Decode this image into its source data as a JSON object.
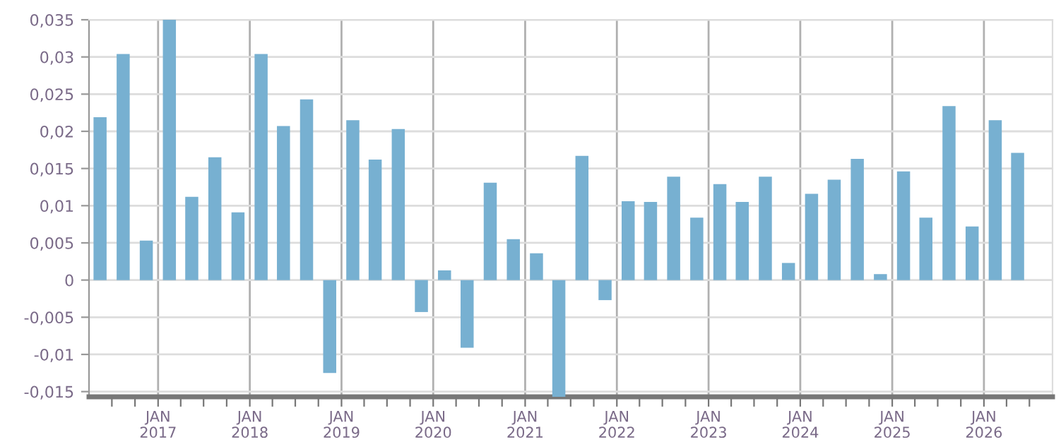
{
  "chart_data": {
    "type": "bar",
    "color": "#77b0d1",
    "x": [
      "2016-05-15",
      "2016-08-15",
      "2016-11-15",
      "2017-02-15",
      "2017-05-15",
      "2017-08-15",
      "2017-11-15",
      "2018-02-15",
      "2018-05-15",
      "2018-08-15",
      "2018-11-15",
      "2019-02-15",
      "2019-05-15",
      "2019-08-15",
      "2019-11-15",
      "2020-02-15",
      "2020-05-15",
      "2020-08-15",
      "2020-11-15",
      "2021-02-15",
      "2021-05-15",
      "2021-08-15",
      "2021-11-15",
      "2022-02-15",
      "2022-05-15",
      "2022-08-15",
      "2022-11-15",
      "2023-02-15",
      "2023-05-15",
      "2023-08-15",
      "2023-11-15",
      "2024-02-15",
      "2024-05-15",
      "2024-08-15",
      "2024-11-15",
      "2025-02-15",
      "2025-05-15",
      "2025-08-15",
      "2025-11-15",
      "2026-02-15",
      "2026-05-15"
    ],
    "values": [
      0.0219,
      0.0304,
      0.0053,
      0.035,
      0.0112,
      0.0165,
      0.0091,
      0.0304,
      0.0207,
      0.0243,
      -0.0125,
      0.0215,
      0.0162,
      0.0203,
      -0.0043,
      0.0013,
      -0.0091,
      0.0131,
      0.0055,
      0.0036,
      -0.0157,
      0.0167,
      -0.0027,
      0.0106,
      0.0105,
      0.0139,
      0.0084,
      0.0129,
      0.0105,
      0.0139,
      0.0023,
      0.0116,
      0.0135,
      0.0163,
      0.0008,
      0.0146,
      0.0084,
      0.0234,
      0.0072,
      0.0215,
      0.0171
    ],
    "xlim": [
      "2016-04-01",
      "2026-10-01"
    ],
    "xticks": [
      {
        "value": "2016-07-01",
        "label": null
      },
      {
        "value": "2016-10-01",
        "label": null
      },
      {
        "value": "2017-01-01",
        "label": "JAN\n2017"
      },
      {
        "value": "2017-04-01",
        "label": null
      },
      {
        "value": "2017-07-01",
        "label": null
      },
      {
        "value": "2017-10-01",
        "label": null
      },
      {
        "value": "2018-01-01",
        "label": "JAN\n2018"
      },
      {
        "value": "2018-04-01",
        "label": null
      },
      {
        "value": "2018-07-01",
        "label": null
      },
      {
        "value": "2018-10-01",
        "label": null
      },
      {
        "value": "2019-01-01",
        "label": "JAN\n2019"
      },
      {
        "value": "2019-04-01",
        "label": null
      },
      {
        "value": "2019-07-01",
        "label": null
      },
      {
        "value": "2019-10-01",
        "label": null
      },
      {
        "value": "2020-01-01",
        "label": "JAN\n2020"
      },
      {
        "value": "2020-04-01",
        "label": null
      },
      {
        "value": "2020-07-01",
        "label": null
      },
      {
        "value": "2020-10-01",
        "label": null
      },
      {
        "value": "2021-01-01",
        "label": "JAN\n2021"
      },
      {
        "value": "2021-04-01",
        "label": null
      },
      {
        "value": "2021-07-01",
        "label": null
      },
      {
        "value": "2021-10-01",
        "label": null
      },
      {
        "value": "2022-01-01",
        "label": "JAN\n2022"
      },
      {
        "value": "2022-04-01",
        "label": null
      },
      {
        "value": "2022-07-01",
        "label": null
      },
      {
        "value": "2022-10-01",
        "label": null
      },
      {
        "value": "2023-01-01",
        "label": "JAN\n2023"
      },
      {
        "value": "2023-04-01",
        "label": null
      },
      {
        "value": "2023-07-01",
        "label": null
      },
      {
        "value": "2023-10-01",
        "label": null
      },
      {
        "value": "2024-01-01",
        "label": "JAN\n2024"
      },
      {
        "value": "2024-04-01",
        "label": null
      },
      {
        "value": "2024-07-01",
        "label": null
      },
      {
        "value": "2024-10-01",
        "label": null
      },
      {
        "value": "2025-01-01",
        "label": "JAN\n2025"
      },
      {
        "value": "2025-04-01",
        "label": null
      },
      {
        "value": "2025-07-01",
        "label": null
      },
      {
        "value": "2025-10-01",
        "label": null
      },
      {
        "value": "2026-01-01",
        "label": "JAN\n2026"
      },
      {
        "value": "2026-04-01",
        "label": null
      },
      {
        "value": "2026-07-01",
        "label": null
      }
    ],
    "ylim": [
      -0.0157,
      0.035
    ],
    "yticks": [
      {
        "value": -0.015,
        "label": "-0,015"
      },
      {
        "value": -0.01,
        "label": "-0,01"
      },
      {
        "value": -0.005,
        "label": "-0,005"
      },
      {
        "value": 0,
        "label": "0"
      },
      {
        "value": 0.005,
        "label": "0,005"
      },
      {
        "value": 0.01,
        "label": "0,01"
      },
      {
        "value": 0.015,
        "label": "0,015"
      },
      {
        "value": 0.02,
        "label": "0,02"
      },
      {
        "value": 0.025,
        "label": "0,025"
      },
      {
        "value": 0.03,
        "label": "0,03"
      },
      {
        "value": 0.035,
        "label": "0,035"
      }
    ],
    "grid": true
  }
}
